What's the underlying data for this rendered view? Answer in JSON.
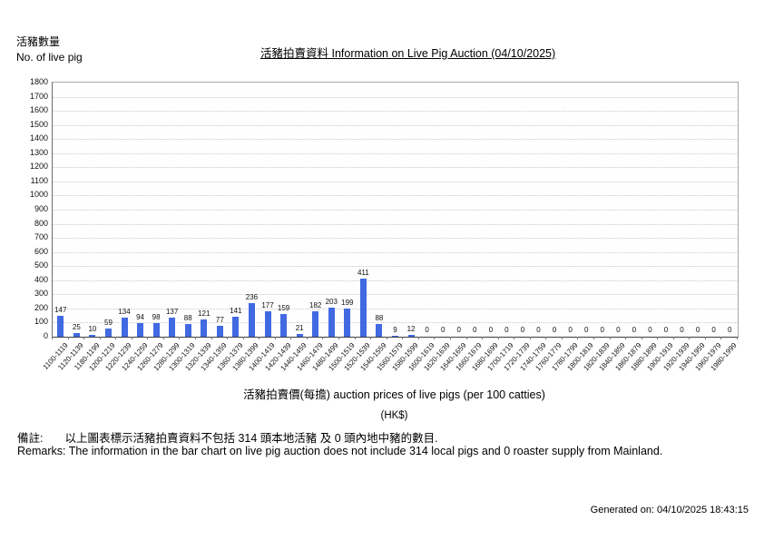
{
  "page": {
    "y_axis_label_zh": "活豬數量",
    "y_axis_label_en": "No. of live pig",
    "title": "活豬拍賣資料 Information on Live Pig Auction (04/10/2025)",
    "generated_on": "Generated on: 04/10/2025 18:43:15"
  },
  "remarks": {
    "zh_label": "備註:",
    "zh_text": "以上圖表標示活豬拍賣資料不包括 314 頭本地活豬 及 0 頭內地中豬的數目.",
    "en_text": "Remarks: The information in the bar chart on live pig auction does not include 314 local pigs and 0 roaster supply from Mainland."
  },
  "chart_data": {
    "type": "bar",
    "title": "活豬拍賣資料 Information on Live Pig Auction (04/10/2025)",
    "xlabel": "活豬拍賣價(每擔) auction prices of live pigs (per 100 catties)",
    "xlabel_unit": "(HK$)",
    "ylabel": "活豬數量 No. of live pig",
    "ylim": [
      0,
      1800
    ],
    "ytick_step": 100,
    "bar_color": "#4169E1",
    "grid": true,
    "legend": "none",
    "categories": [
      "1100-1119",
      "1120-1139",
      "1180-1199",
      "1200-1219",
      "1220-1239",
      "1240-1259",
      "1260-1279",
      "1280-1299",
      "1300-1319",
      "1320-1339",
      "1340-1359",
      "1360-1379",
      "1380-1399",
      "1400-1419",
      "1420-1439",
      "1440-1459",
      "1460-1479",
      "1480-1499",
      "1500-1519",
      "1520-1539",
      "1540-1559",
      "1560-1579",
      "1580-1599",
      "1600-1619",
      "1620-1639",
      "1640-1659",
      "1660-1679",
      "1680-1699",
      "1700-1719",
      "1720-1739",
      "1740-1759",
      "1760-1779",
      "1780-1799",
      "1800-1819",
      "1820-1839",
      "1840-1859",
      "1860-1879",
      "1880-1899",
      "1900-1919",
      "1920-1939",
      "1940-1959",
      "1960-1979",
      "1980-1999"
    ],
    "values": [
      147,
      25,
      10,
      59,
      134,
      94,
      98,
      137,
      88,
      121,
      77,
      141,
      236,
      177,
      159,
      21,
      182,
      203,
      199,
      411,
      88,
      9,
      12,
      0,
      0,
      0,
      0,
      0,
      0,
      0,
      0,
      0,
      0,
      0,
      0,
      0,
      0,
      0,
      0,
      0,
      0,
      0,
      0
    ]
  }
}
